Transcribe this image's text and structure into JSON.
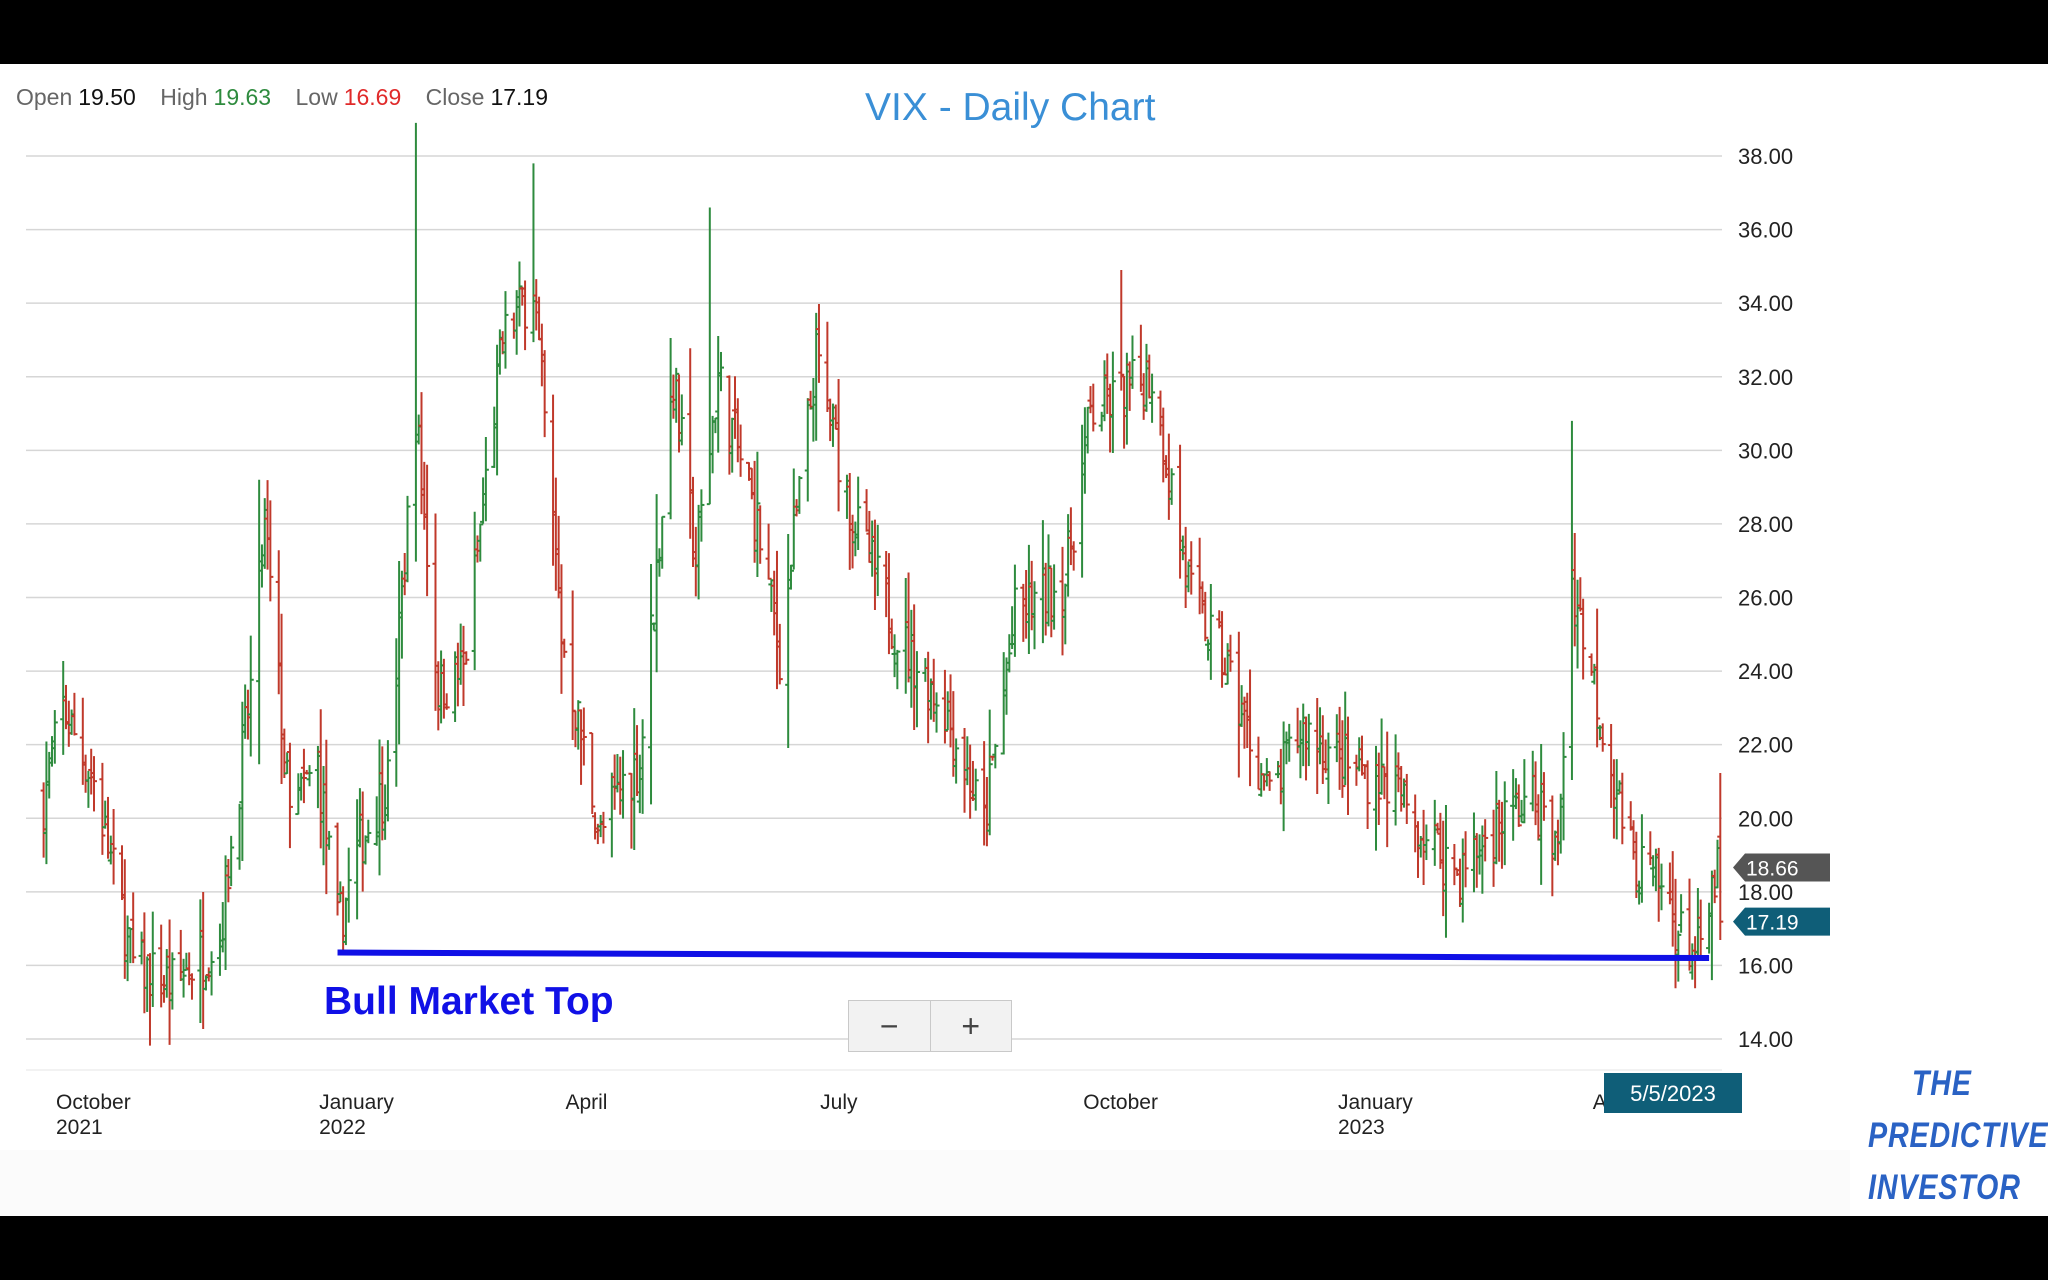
{
  "ohlc": {
    "open_label": "Open",
    "open_value": "19.50",
    "high_label": "High",
    "high_value": "19.63",
    "low_label": "Low",
    "low_value": "16.69",
    "close_label": "Close",
    "close_value": "17.19"
  },
  "title": "VIX - Daily Chart",
  "annotation": "Bull Market Top",
  "zoom": {
    "out": "−",
    "in": "+"
  },
  "logo": {
    "line1": "THE",
    "line2": "PREDICTIVE",
    "line3": "INVESTOR"
  },
  "colors": {
    "up": "#2e8b3e",
    "down": "#c0392b",
    "support_line": "#1010e6",
    "title": "#3a8fd6",
    "last_price_tag": "#0f5e78",
    "prev_tag": "#555555"
  },
  "chart_data": {
    "type": "ohlc",
    "title": "VIX - Daily Chart",
    "ylim": [
      13.2,
      39.0
    ],
    "y_ticks": [
      "38.00",
      "36.00",
      "34.00",
      "32.00",
      "30.00",
      "28.00",
      "26.00",
      "24.00",
      "22.00",
      "20.00",
      "18.00",
      "16.00",
      "14.00"
    ],
    "x_tick_labels": [
      {
        "line1": "October",
        "line2": "2021"
      },
      {
        "line1": "January",
        "line2": "2022"
      },
      {
        "line1": "April",
        "line2": ""
      },
      {
        "line1": "July",
        "line2": ""
      },
      {
        "line1": "October",
        "line2": ""
      },
      {
        "line1": "January",
        "line2": "2023"
      },
      {
        "line1": "A",
        "line2": ""
      }
    ],
    "price_tags": {
      "previous": "18.66",
      "last": "17.19"
    },
    "cursor_date": "5/5/2023",
    "support_line": {
      "label": "Bull Market Top",
      "start": {
        "date": "2021-12-27",
        "value": 16.35
      },
      "end": {
        "date": "2023-05-01",
        "value": 16.2
      }
    },
    "path_keypoints": [
      [
        "2021-09-13",
        20.5
      ],
      [
        "2021-09-20",
        23.0
      ],
      [
        "2021-10-01",
        21.0
      ],
      [
        "2021-10-15",
        16.0
      ],
      [
        "2021-10-29",
        15.5
      ],
      [
        "2021-11-15",
        16.8
      ],
      [
        "2021-11-26",
        23.5
      ],
      [
        "2021-12-01",
        28.0
      ],
      [
        "2021-12-10",
        20.0
      ],
      [
        "2021-12-20",
        21.5
      ],
      [
        "2021-12-27",
        17.0
      ],
      [
        "2022-01-05",
        19.5
      ],
      [
        "2022-01-14",
        21.0
      ],
      [
        "2022-01-24",
        31.0
      ],
      [
        "2022-02-01",
        23.5
      ],
      [
        "2022-02-10",
        24.0
      ],
      [
        "2022-02-24",
        33.0
      ],
      [
        "2022-03-07",
        34.5
      ],
      [
        "2022-03-17",
        25.0
      ],
      [
        "2022-03-31",
        19.5
      ],
      [
        "2022-04-08",
        21.0
      ],
      [
        "2022-04-14",
        21.5
      ],
      [
        "2022-04-26",
        32.0
      ],
      [
        "2022-05-04",
        27.0
      ],
      [
        "2022-05-12",
        32.0
      ],
      [
        "2022-05-26",
        28.0
      ],
      [
        "2022-06-03",
        24.5
      ],
      [
        "2022-06-16",
        32.5
      ],
      [
        "2022-06-30",
        28.0
      ],
      [
        "2022-07-15",
        25.0
      ],
      [
        "2022-08-01",
        23.0
      ],
      [
        "2022-08-15",
        19.8
      ],
      [
        "2022-08-26",
        25.5
      ],
      [
        "2022-09-13",
        26.5
      ],
      [
        "2022-09-22",
        31.0
      ],
      [
        "2022-10-03",
        31.5
      ],
      [
        "2022-10-14",
        32.0
      ],
      [
        "2022-10-28",
        26.0
      ],
      [
        "2022-11-10",
        24.0
      ],
      [
        "2022-11-25",
        20.5
      ],
      [
        "2022-12-07",
        22.5
      ],
      [
        "2022-12-20",
        21.5
      ],
      [
        "2023-01-06",
        21.0
      ],
      [
        "2023-01-20",
        19.5
      ],
      [
        "2023-02-01",
        18.5
      ],
      [
        "2023-02-16",
        20.0
      ],
      [
        "2023-02-28",
        20.5
      ],
      [
        "2023-03-08",
        19.0
      ],
      [
        "2023-03-13",
        26.5
      ],
      [
        "2023-03-20",
        24.0
      ],
      [
        "2023-04-03",
        19.0
      ],
      [
        "2023-04-14",
        18.0
      ],
      [
        "2023-04-21",
        16.8
      ],
      [
        "2023-04-28",
        16.2
      ],
      [
        "2023-05-04",
        18.7
      ],
      [
        "2023-05-05",
        17.19
      ]
    ],
    "annotated_extremes": [
      {
        "date": "2022-01-24",
        "high": 38.9
      },
      {
        "date": "2022-03-07",
        "high": 37.8
      },
      {
        "date": "2022-05-09",
        "high": 36.6
      },
      {
        "date": "2022-10-03",
        "high": 34.9
      },
      {
        "date": "2023-03-13",
        "high": 30.8
      },
      {
        "date": "2021-10-29",
        "low": 14.8
      },
      {
        "date": "2023-05-02",
        "low": 15.6
      }
    ]
  }
}
